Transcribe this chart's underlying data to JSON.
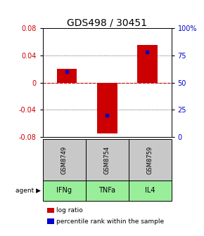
{
  "title": "GDS498 / 30451",
  "samples": [
    "GSM8749",
    "GSM8754",
    "GSM8759"
  ],
  "agents": [
    "IFNg",
    "TNFa",
    "IL4"
  ],
  "log_ratios": [
    0.02,
    -0.075,
    0.055
  ],
  "percentile_ranks": [
    0.6,
    0.2,
    0.78
  ],
  "ylim": [
    -0.08,
    0.08
  ],
  "yticks_left": [
    -0.08,
    -0.04,
    0,
    0.04,
    0.08
  ],
  "yticks_right": [
    0,
    25,
    50,
    75,
    100
  ],
  "ytick_right_labels": [
    "0",
    "25",
    "50",
    "75",
    "100%"
  ],
  "bar_color": "#cc0000",
  "pct_color": "#0000cc",
  "zero_line_color": "#cc0000",
  "sample_bg": "#c8c8c8",
  "agent_bg": "#99ee99",
  "bar_width": 0.5,
  "title_fontsize": 10,
  "tick_fontsize": 7,
  "legend_fontsize": 6.5
}
